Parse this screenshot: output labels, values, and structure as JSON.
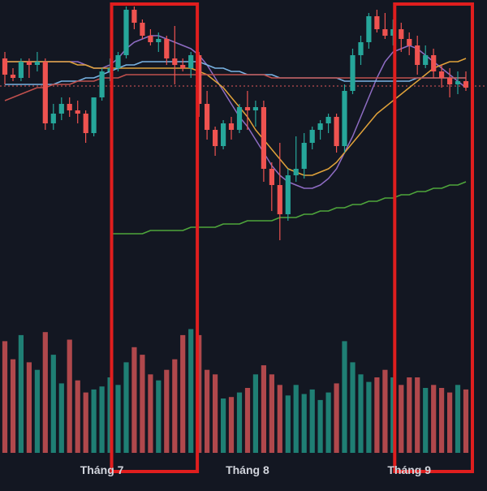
{
  "chart_data": {
    "type": "candlestick",
    "title": "",
    "xlabel": "",
    "ylabel": "",
    "x_tick_labels": [
      "Tháng 7",
      "Tháng 8",
      "Tháng 9"
    ],
    "x_tick_index": [
      12,
      30,
      50
    ],
    "ylim": [
      0,
      100
    ],
    "volume_ylim": [
      0,
      100
    ],
    "grid": false,
    "legend": "none",
    "reference_line": 73.5,
    "highlight_ranges": [
      [
        14,
        23
      ],
      [
        49,
        57
      ]
    ],
    "candles": [
      [
        82,
        84,
        74,
        77,
        74
      ],
      [
        77,
        79,
        75,
        76,
        62
      ],
      [
        76,
        82,
        75,
        81,
        78
      ],
      [
        81,
        82,
        76,
        80,
        60
      ],
      [
        80,
        84,
        78,
        81,
        55
      ],
      [
        81,
        82,
        60,
        62,
        80
      ],
      [
        62,
        68,
        60,
        65,
        65
      ],
      [
        65,
        70,
        63,
        68,
        46
      ],
      [
        68,
        70,
        64,
        66,
        75
      ],
      [
        66,
        69,
        62,
        65,
        48
      ],
      [
        65,
        66,
        56,
        59,
        40
      ],
      [
        59,
        70,
        58,
        70,
        42
      ],
      [
        70,
        79,
        69,
        78,
        44
      ],
      [
        78,
        82,
        75,
        79,
        50
      ],
      [
        79,
        84,
        78,
        83,
        45
      ],
      [
        83,
        98,
        82,
        97,
        60
      ],
      [
        97,
        98,
        91,
        93,
        70
      ],
      [
        93,
        94,
        88,
        89,
        65
      ],
      [
        89,
        91,
        86,
        87,
        52
      ],
      [
        87,
        90,
        84,
        88,
        48
      ],
      [
        88,
        89,
        80,
        82,
        55
      ],
      [
        82,
        92,
        74,
        80,
        62
      ],
      [
        80,
        82,
        78,
        79,
        78
      ],
      [
        79,
        84,
        76,
        83,
        82
      ],
      [
        83,
        84,
        64,
        68,
        78
      ],
      [
        68,
        72,
        57,
        60,
        55
      ],
      [
        60,
        61,
        52,
        55,
        52
      ],
      [
        55,
        63,
        54,
        62,
        36
      ],
      [
        62,
        64,
        57,
        60,
        37
      ],
      [
        60,
        68,
        59,
        67,
        40
      ],
      [
        67,
        72,
        60,
        66,
        43
      ],
      [
        66,
        69,
        61,
        67,
        52
      ],
      [
        67,
        69,
        44,
        48,
        58
      ],
      [
        48,
        50,
        35,
        43,
        52
      ],
      [
        43,
        56,
        26,
        34,
        45
      ],
      [
        34,
        48,
        32,
        46,
        38
      ],
      [
        46,
        58,
        44,
        48,
        45
      ],
      [
        48,
        59,
        45,
        56,
        39
      ],
      [
        56,
        61,
        54,
        60,
        42
      ],
      [
        60,
        63,
        57,
        62,
        35
      ],
      [
        62,
        65,
        59,
        64,
        40
      ],
      [
        64,
        65,
        53,
        55,
        46
      ],
      [
        55,
        74,
        53,
        72,
        74
      ],
      [
        72,
        85,
        71,
        83,
        60
      ],
      [
        83,
        89,
        80,
        87,
        52
      ],
      [
        87,
        96,
        85,
        95,
        47
      ],
      [
        95,
        97,
        90,
        91,
        50
      ],
      [
        91,
        96,
        88,
        89,
        55
      ],
      [
        89,
        94,
        86,
        91,
        50
      ],
      [
        91,
        93,
        84,
        88,
        45
      ],
      [
        88,
        90,
        83,
        86,
        50
      ],
      [
        86,
        89,
        77,
        80,
        50
      ],
      [
        80,
        86,
        79,
        83,
        43
      ],
      [
        83,
        85,
        76,
        78,
        45
      ],
      [
        78,
        80,
        73,
        76,
        43
      ],
      [
        76,
        79,
        70,
        74,
        40
      ],
      [
        74,
        78,
        71,
        75,
        45
      ],
      [
        75,
        78,
        72,
        73,
        42
      ]
    ],
    "series": [
      {
        "type": "line",
        "color": "#8e6cc3",
        "values": [
          81,
          81,
          81,
          81,
          81,
          81,
          81,
          81,
          81,
          81,
          80,
          79,
          79,
          80,
          82,
          85,
          87,
          88,
          89,
          89,
          88,
          87,
          86,
          85,
          83,
          80,
          76,
          72,
          68,
          64,
          61,
          57,
          53,
          49,
          46,
          44,
          43,
          42,
          42,
          43,
          45,
          48,
          53,
          58,
          64,
          70,
          76,
          81,
          84,
          85,
          86,
          85,
          83,
          81,
          79,
          77,
          75,
          73
        ]
      },
      {
        "type": "line",
        "color": "#e0a23a",
        "values": [
          81,
          81,
          81,
          81,
          81,
          81,
          81,
          81,
          81,
          80,
          80,
          79,
          79,
          79,
          79,
          79,
          79,
          79,
          79,
          79,
          79,
          79,
          79,
          79,
          78,
          77,
          75,
          73,
          70,
          67,
          64,
          60,
          57,
          54,
          51,
          48,
          47,
          46,
          46,
          47,
          48,
          50,
          53,
          56,
          59,
          62,
          65,
          67,
          69,
          71,
          73,
          75,
          77,
          79,
          80,
          81,
          81,
          82
        ]
      },
      {
        "type": "line",
        "color": "#79b3e3",
        "values": [
          74,
          74,
          74,
          74,
          74,
          74,
          74,
          75,
          75,
          75,
          76,
          76,
          77,
          78,
          79,
          80,
          80,
          81,
          81,
          81,
          81,
          81,
          81,
          81,
          81,
          80,
          79,
          79,
          78,
          78,
          77,
          77,
          77,
          77,
          76,
          76,
          76,
          76,
          76,
          76,
          76,
          76,
          75,
          75,
          75,
          75,
          75,
          75,
          75,
          75,
          75,
          76,
          76,
          76,
          76,
          76,
          76,
          76
        ]
      },
      {
        "type": "line",
        "color": "#c0504d",
        "values": [
          69,
          70,
          71,
          72,
          73,
          73,
          74,
          74,
          74,
          75,
          75,
          75,
          76,
          76,
          76,
          77,
          77,
          77,
          77,
          77,
          77,
          77,
          77,
          77,
          77,
          77,
          77,
          77,
          77,
          77,
          77,
          77,
          77,
          76,
          76,
          76,
          76,
          76,
          76,
          76,
          76,
          76,
          76,
          76,
          76,
          76,
          76,
          76,
          76,
          76,
          76,
          76,
          76,
          76,
          76,
          76,
          76,
          76
        ]
      },
      {
        "type": "line",
        "color": "#4ea53b",
        "values": [
          null,
          null,
          null,
          null,
          null,
          null,
          null,
          null,
          null,
          null,
          null,
          null,
          null,
          28,
          28,
          28,
          28,
          28,
          29,
          29,
          29,
          29,
          29,
          30,
          30,
          30,
          30,
          31,
          31,
          31,
          32,
          32,
          32,
          32,
          33,
          33,
          33,
          34,
          34,
          35,
          35,
          36,
          36,
          37,
          37,
          38,
          38,
          39,
          39,
          40,
          40,
          41,
          41,
          42,
          42,
          43,
          43,
          44
        ]
      }
    ]
  }
}
